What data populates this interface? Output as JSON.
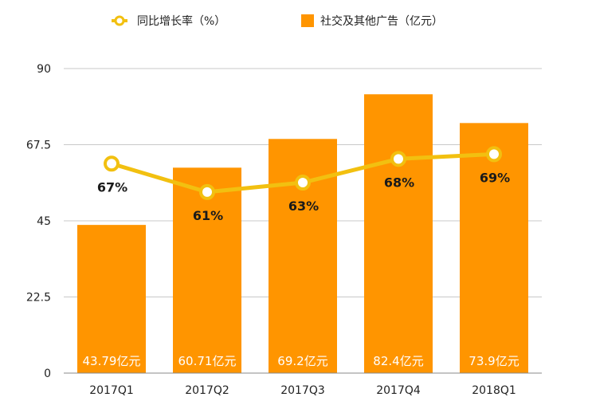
{
  "chart_data": {
    "type": "bar",
    "categories": [
      "2017Q1",
      "2017Q2",
      "2017Q3",
      "2017Q4",
      "2018Q1"
    ],
    "series": [
      {
        "name": "社交及其他广告（亿元）",
        "kind": "bar",
        "values": [
          43.79,
          60.71,
          69.2,
          82.4,
          73.9
        ],
        "value_labels": [
          "43.79亿元",
          "60.71亿元",
          "69.2亿元",
          "82.4亿元",
          "73.9亿元"
        ]
      },
      {
        "name": "同比增长率（%）",
        "kind": "line",
        "values": [
          67,
          61,
          63,
          68,
          69
        ],
        "value_labels": [
          "67%",
          "61%",
          "63%",
          "68%",
          "69%"
        ]
      }
    ],
    "ylim": [
      0,
      90
    ],
    "yticks": [
      0,
      22.5,
      45,
      67.5,
      90
    ],
    "ytick_labels": [
      "0",
      "22.5",
      "45",
      "67.5",
      "90"
    ],
    "grid": true,
    "legend_position": "top",
    "xlabel": "",
    "ylabel": ""
  },
  "colors": {
    "bar": "#ff9500",
    "line": "#f2c010",
    "grid": "#c8c8c8",
    "marker_fill": "#ffffff"
  }
}
